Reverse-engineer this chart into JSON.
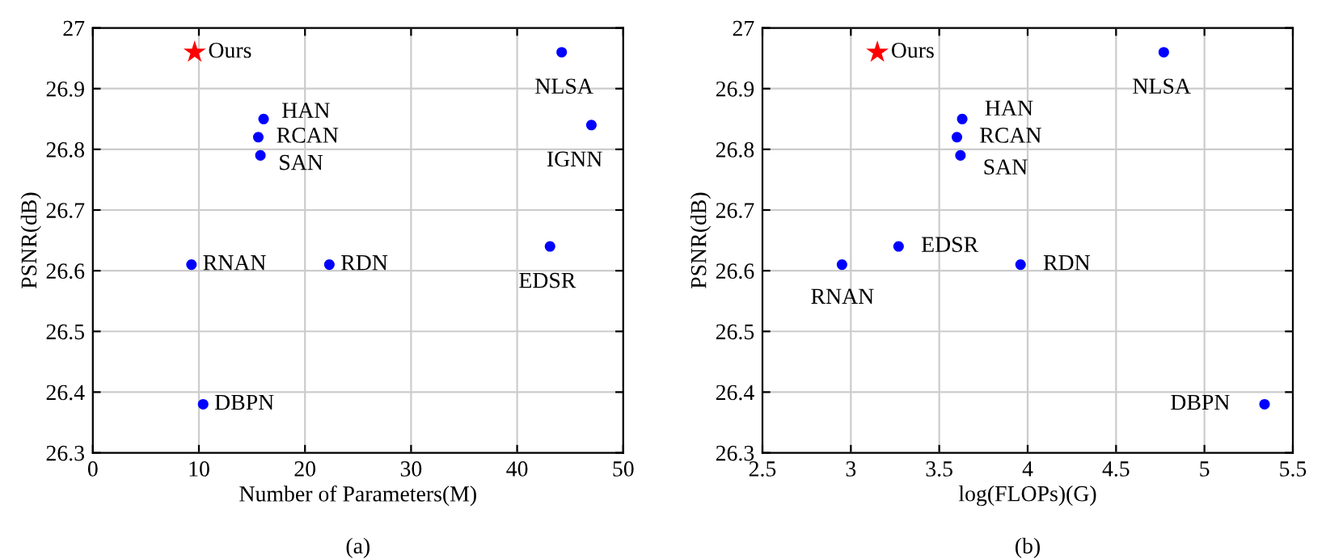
{
  "chart_data": [
    {
      "type": "scatter",
      "xlabel": "Number of Parameters(M)",
      "ylabel": "PSNR(dB)",
      "xlim": [
        0,
        50
      ],
      "xticks": [
        0,
        10,
        20,
        30,
        40,
        50
      ],
      "ylim": [
        26.3,
        27
      ],
      "yticks": [
        26.3,
        26.4,
        26.5,
        26.6,
        26.7,
        26.8,
        26.9,
        27
      ],
      "grid": true,
      "series": [
        {
          "name": "Ours",
          "color": "#ff0000",
          "marker": "star",
          "x": [
            9.6
          ],
          "values": [
            26.96
          ]
        },
        {
          "color": "#0000ff",
          "marker": "circle",
          "x": [
            44.2,
            47.0,
            16.1,
            15.6,
            15.8,
            9.3,
            22.3,
            43.1,
            10.4
          ],
          "values": [
            26.96,
            26.84,
            26.85,
            26.82,
            26.79,
            26.61,
            26.61,
            26.64,
            26.38
          ]
        }
      ],
      "annotations": [
        {
          "text": "NLSA",
          "x": 44.2,
          "y": 26.96
        },
        {
          "text": "IGNN",
          "x": 47.0,
          "y": 26.84
        },
        {
          "text": "HAN",
          "x": 16.1,
          "y": 26.85
        },
        {
          "text": "RCAN",
          "x": 15.6,
          "y": 26.82
        },
        {
          "text": "SAN",
          "x": 15.8,
          "y": 26.79
        },
        {
          "text": "RNAN",
          "x": 9.3,
          "y": 26.61
        },
        {
          "text": "RDN",
          "x": 22.3,
          "y": 26.61
        },
        {
          "text": "EDSR",
          "x": 43.1,
          "y": 26.64
        },
        {
          "text": "DBPN",
          "x": 10.4,
          "y": 26.38
        },
        "(a)"
      ]
    },
    {
      "type": "scatter",
      "xlabel": "log(FLOPs)(G)",
      "ylabel": "PSNR(dB)",
      "xlim": [
        2.5,
        5.5
      ],
      "xticks": [
        2.5,
        3,
        3.5,
        4,
        4.5,
        5,
        5.5
      ],
      "ylim": [
        26.3,
        27
      ],
      "yticks": [
        26.3,
        26.4,
        26.5,
        26.6,
        26.7,
        26.8,
        26.9,
        27
      ],
      "grid": true,
      "series": [
        {
          "name": "Ours",
          "color": "#ff0000",
          "marker": "star",
          "x": [
            3.15
          ],
          "values": [
            26.96
          ]
        },
        {
          "color": "#0000ff",
          "marker": "circle",
          "x": [
            4.77,
            3.63,
            3.6,
            3.62,
            3.27,
            2.95,
            3.96,
            5.34
          ],
          "values": [
            26.96,
            26.85,
            26.82,
            26.79,
            26.64,
            26.61,
            26.61,
            26.38
          ]
        }
      ],
      "annotations": [
        {
          "text": "NLSA",
          "x": 4.77,
          "y": 26.96
        },
        {
          "text": "HAN",
          "x": 3.63,
          "y": 26.85
        },
        {
          "text": "RCAN",
          "x": 3.6,
          "y": 26.82
        },
        {
          "text": "SAN",
          "x": 3.62,
          "y": 26.79
        },
        {
          "text": "EDSR",
          "x": 3.27,
          "y": 26.64
        },
        {
          "text": "RNAN",
          "x": 2.95,
          "y": 26.61
        },
        {
          "text": "RDN",
          "x": 3.96,
          "y": 26.61
        },
        {
          "text": "DBPN",
          "x": 5.34,
          "y": 26.38
        },
        "(b)"
      ]
    }
  ]
}
